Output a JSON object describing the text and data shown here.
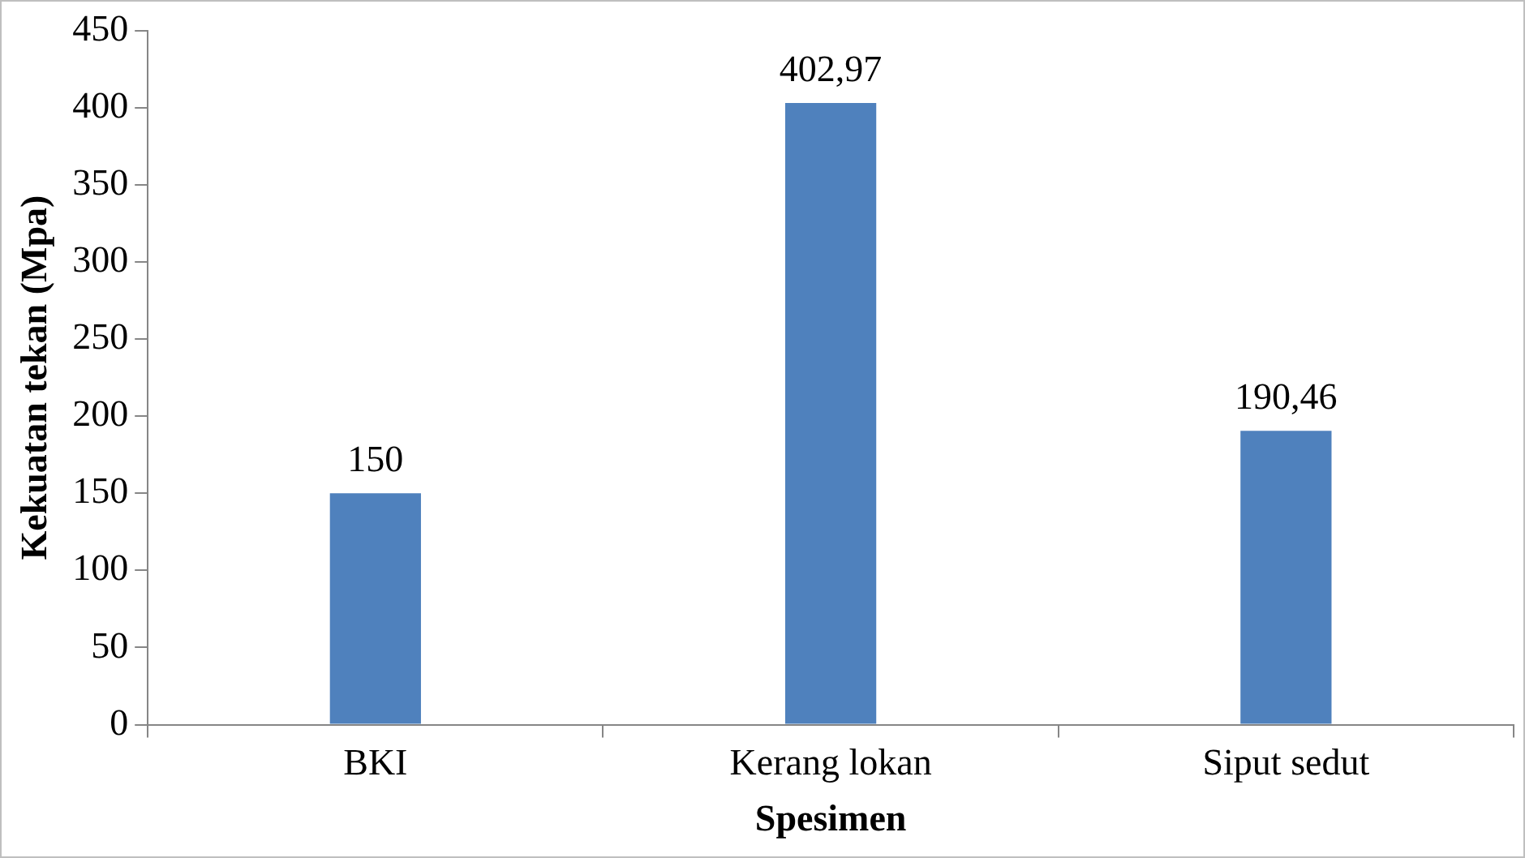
{
  "chart_data": {
    "type": "bar",
    "xlabel": "Spesimen",
    "ylabel": "Kekuatan tekan (Mpa)",
    "categories": [
      "BKI",
      "Kerang lokan",
      "Siput sedut"
    ],
    "values": [
      150,
      402.97,
      190.46
    ],
    "value_labels": [
      "150",
      "402,97",
      "190,46"
    ],
    "color": "#4f81bd",
    "ylim": [
      0,
      450
    ],
    "yticks": [
      0,
      50,
      100,
      150,
      200,
      250,
      300,
      350,
      400,
      450
    ],
    "grid": false,
    "legend": false
  }
}
